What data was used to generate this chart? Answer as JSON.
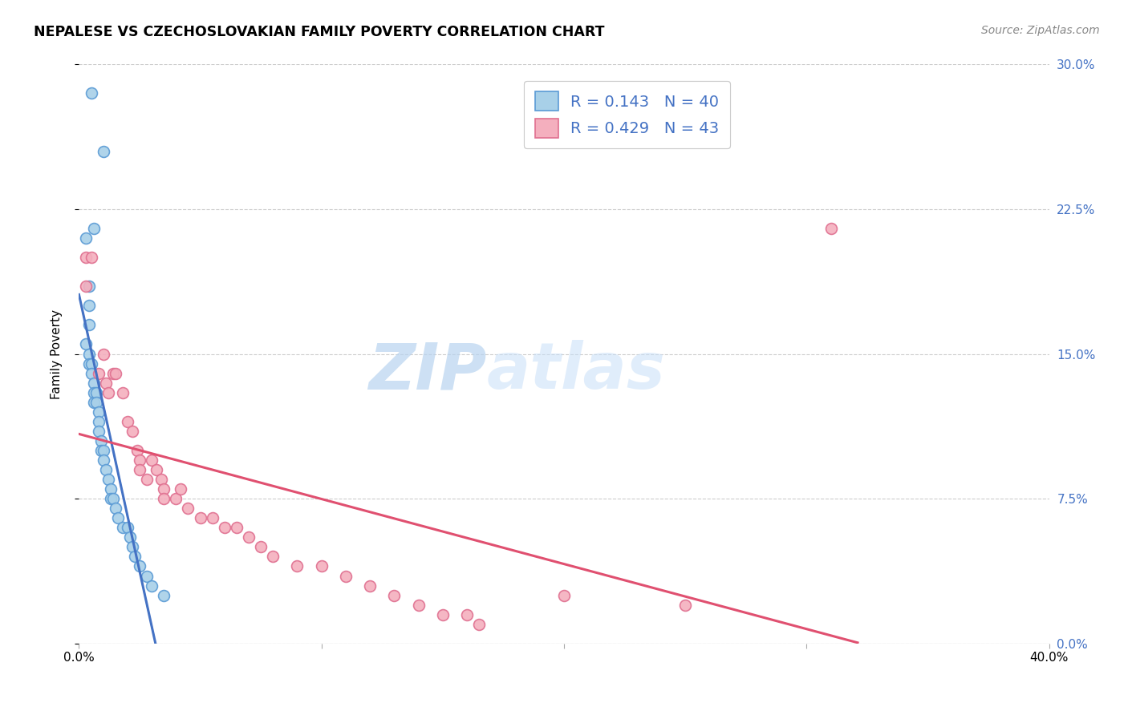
{
  "title": "NEPALESE VS CZECHOSLOVAKIAN FAMILY POVERTY CORRELATION CHART",
  "source": "Source: ZipAtlas.com",
  "ylabel": "Family Poverty",
  "x_min": 0.0,
  "x_max": 0.4,
  "y_min": 0.0,
  "y_max": 0.3,
  "y_ticks": [
    0.0,
    0.075,
    0.15,
    0.225,
    0.3
  ],
  "y_tick_labels_right": [
    "0.0%",
    "7.5%",
    "15.0%",
    "22.5%",
    "30.0%"
  ],
  "watermark_zip": "ZIP",
  "watermark_atlas": "atlas",
  "nepalese_color": "#A8D0E8",
  "czechoslovakian_color": "#F4AFBE",
  "nepalese_edge_color": "#5B9BD5",
  "czechoslovakian_edge_color": "#E07090",
  "nepalese_line_color": "#4472C4",
  "czechoslovakian_line_color": "#E05070",
  "legend_text_color": "#4472C4",
  "nepalese_R": 0.143,
  "nepalese_N": 40,
  "czechoslovakian_R": 0.429,
  "czechoslovakian_N": 43,
  "nepalese_x": [
    0.005,
    0.01,
    0.003,
    0.006,
    0.004,
    0.004,
    0.004,
    0.003,
    0.004,
    0.004,
    0.005,
    0.005,
    0.006,
    0.006,
    0.006,
    0.007,
    0.007,
    0.008,
    0.008,
    0.008,
    0.009,
    0.009,
    0.01,
    0.01,
    0.011,
    0.012,
    0.013,
    0.013,
    0.014,
    0.015,
    0.016,
    0.018,
    0.02,
    0.021,
    0.022,
    0.023,
    0.025,
    0.028,
    0.03,
    0.035
  ],
  "nepalese_y": [
    0.285,
    0.255,
    0.21,
    0.215,
    0.185,
    0.175,
    0.165,
    0.155,
    0.15,
    0.145,
    0.145,
    0.14,
    0.135,
    0.13,
    0.125,
    0.13,
    0.125,
    0.12,
    0.115,
    0.11,
    0.105,
    0.1,
    0.1,
    0.095,
    0.09,
    0.085,
    0.08,
    0.075,
    0.075,
    0.07,
    0.065,
    0.06,
    0.06,
    0.055,
    0.05,
    0.045,
    0.04,
    0.035,
    0.03,
    0.025
  ],
  "czechoslovakian_x": [
    0.003,
    0.003,
    0.005,
    0.008,
    0.01,
    0.011,
    0.012,
    0.014,
    0.015,
    0.018,
    0.02,
    0.022,
    0.024,
    0.025,
    0.025,
    0.028,
    0.03,
    0.032,
    0.034,
    0.035,
    0.035,
    0.04,
    0.042,
    0.045,
    0.05,
    0.055,
    0.06,
    0.065,
    0.07,
    0.075,
    0.08,
    0.09,
    0.1,
    0.11,
    0.12,
    0.13,
    0.14,
    0.15,
    0.16,
    0.165,
    0.2,
    0.25,
    0.31
  ],
  "czechoslovakian_y": [
    0.2,
    0.185,
    0.2,
    0.14,
    0.15,
    0.135,
    0.13,
    0.14,
    0.14,
    0.13,
    0.115,
    0.11,
    0.1,
    0.095,
    0.09,
    0.085,
    0.095,
    0.09,
    0.085,
    0.08,
    0.075,
    0.075,
    0.08,
    0.07,
    0.065,
    0.065,
    0.06,
    0.06,
    0.055,
    0.05,
    0.045,
    0.04,
    0.04,
    0.035,
    0.03,
    0.025,
    0.02,
    0.015,
    0.015,
    0.01,
    0.025,
    0.02,
    0.215
  ]
}
